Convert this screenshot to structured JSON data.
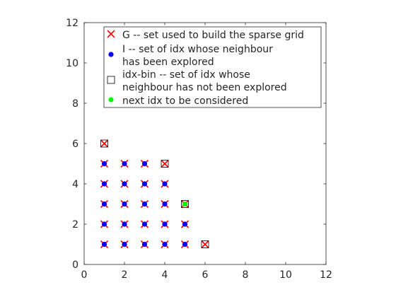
{
  "chart_data": {
    "type": "scatter",
    "title": "",
    "xlabel": "",
    "ylabel": "",
    "xlim": [
      0,
      12
    ],
    "ylim": [
      0,
      12
    ],
    "xticks": [
      0,
      2,
      4,
      6,
      8,
      10,
      12
    ],
    "yticks": [
      0,
      2,
      4,
      6,
      8,
      10,
      12
    ],
    "grid": false,
    "legend_position": "top-right",
    "series": [
      {
        "name": "G -- set used to build the sparse grid",
        "marker": "x",
        "color": "#ff0000",
        "points": [
          [
            1,
            1
          ],
          [
            1,
            2
          ],
          [
            1,
            3
          ],
          [
            1,
            4
          ],
          [
            1,
            5
          ],
          [
            1,
            6
          ],
          [
            2,
            1
          ],
          [
            2,
            2
          ],
          [
            2,
            3
          ],
          [
            2,
            4
          ],
          [
            2,
            5
          ],
          [
            3,
            1
          ],
          [
            3,
            2
          ],
          [
            3,
            3
          ],
          [
            3,
            4
          ],
          [
            3,
            5
          ],
          [
            4,
            1
          ],
          [
            4,
            2
          ],
          [
            4,
            3
          ],
          [
            4,
            4
          ],
          [
            4,
            5
          ],
          [
            5,
            1
          ],
          [
            5,
            2
          ],
          [
            5,
            3
          ],
          [
            6,
            1
          ]
        ]
      },
      {
        "name": "I -- set of idx whose neighbour has been explored",
        "name_lines": [
          "I -- set of idx whose neighbour",
          " has been explored"
        ],
        "marker": "dot",
        "color": "#0000ff",
        "points": [
          [
            1,
            1
          ],
          [
            1,
            2
          ],
          [
            1,
            3
          ],
          [
            1,
            4
          ],
          [
            1,
            5
          ],
          [
            2,
            1
          ],
          [
            2,
            2
          ],
          [
            2,
            3
          ],
          [
            2,
            4
          ],
          [
            2,
            5
          ],
          [
            3,
            1
          ],
          [
            3,
            2
          ],
          [
            3,
            3
          ],
          [
            3,
            4
          ],
          [
            3,
            5
          ],
          [
            4,
            1
          ],
          [
            4,
            2
          ],
          [
            4,
            3
          ],
          [
            4,
            4
          ],
          [
            5,
            1
          ],
          [
            5,
            2
          ]
        ]
      },
      {
        "name": "idx-bin -- set of idx whose neighbour has not been explored",
        "name_lines": [
          "idx-bin -- set of idx whose",
          " neighbour has not been explored"
        ],
        "marker": "square",
        "color": "#000000",
        "points": [
          [
            1,
            6
          ],
          [
            4,
            5
          ],
          [
            5,
            3
          ],
          [
            6,
            1
          ]
        ]
      },
      {
        "name": "next idx to be considered",
        "marker": "dot",
        "color": "#00ff00",
        "points": [
          [
            5,
            3
          ]
        ]
      }
    ]
  }
}
